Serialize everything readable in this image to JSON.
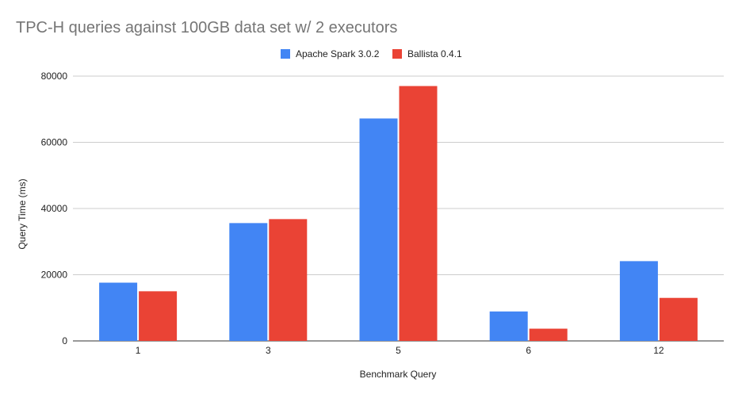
{
  "chart_data": {
    "type": "bar",
    "title": "TPC-H queries against 100GB data set w/ 2 executors",
    "xlabel": "Benchmark Query",
    "ylabel": "Query Time (ms)",
    "categories": [
      "1",
      "3",
      "5",
      "6",
      "12"
    ],
    "series": [
      {
        "name": "Apache Spark 3.0.2",
        "color": "#4285f4",
        "values": [
          17600,
          35600,
          67200,
          8900,
          24100
        ]
      },
      {
        "name": "Ballista 0.4.1",
        "color": "#ea4335",
        "values": [
          15000,
          36800,
          77000,
          3700,
          13000
        ]
      }
    ],
    "ylim": [
      0,
      80000
    ],
    "yticks": [
      "0",
      "20000",
      "40000",
      "60000",
      "80000"
    ],
    "grid": true,
    "legend_position": "top-center"
  }
}
